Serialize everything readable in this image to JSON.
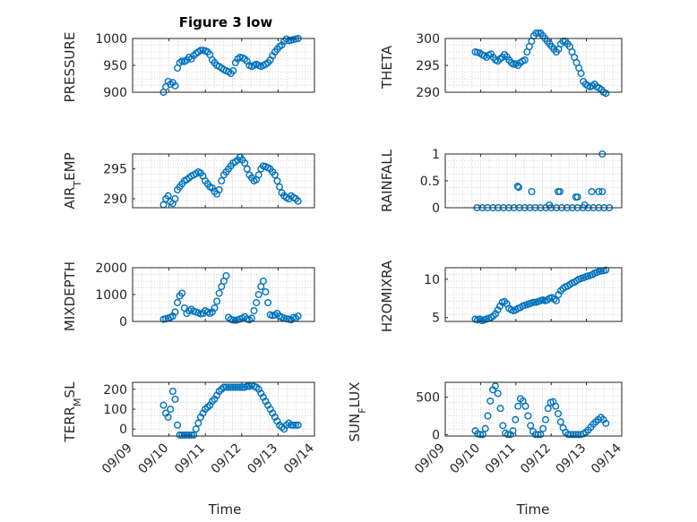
{
  "figure": {
    "title": "Figure 3 low",
    "xlabel": "Time"
  },
  "chart_data": [
    {
      "type": "scatter",
      "ylabel": "PRESSURE",
      "ylim": [
        900,
        1000
      ],
      "yticks": [
        900,
        950,
        1000
      ],
      "xlim": [
        0,
        5
      ],
      "grid": true,
      "y": [
        900,
        910,
        920,
        915,
        918,
        912,
        945,
        955,
        958,
        957,
        960,
        965,
        962,
        968,
        972,
        975,
        978,
        978,
        977,
        975,
        970,
        960,
        955,
        950,
        948,
        945,
        942,
        940,
        938,
        935,
        940,
        955,
        962,
        965,
        964,
        962,
        958,
        950,
        948,
        950,
        952,
        950,
        948,
        950,
        952,
        955,
        960,
        968,
        975,
        980,
        985,
        988,
        995,
        999,
        996,
        997,
        998,
        999,
        1000
      ]
    },
    {
      "type": "scatter",
      "ylabel": "THETA",
      "ylim": [
        290,
        300
      ],
      "yticks": [
        290,
        295,
        300
      ],
      "xlim": [
        0,
        5
      ],
      "grid": true,
      "y": [
        297.5,
        297.4,
        297.3,
        297.0,
        296.8,
        296.5,
        296.9,
        297.1,
        296.5,
        296.0,
        295.8,
        296.2,
        296.5,
        297.0,
        296.6,
        296.0,
        295.5,
        295.2,
        295.3,
        295.0,
        295.5,
        295.8,
        296.0,
        297.5,
        298.5,
        299.5,
        300.5,
        301,
        301,
        301,
        300.5,
        300,
        299.5,
        299.0,
        298.5,
        298.0,
        297.5,
        298.0,
        299.0,
        299.5,
        299.5,
        299.0,
        298.5,
        297.5,
        296.5,
        295.5,
        294.5,
        293.5,
        292.0,
        291.5,
        291.2,
        291.0,
        291.2,
        291.5,
        291.0,
        290.8,
        290.5,
        290.0,
        289.8
      ]
    },
    {
      "type": "scatter",
      "ylabel": "AIR_TEMP",
      "ylim": [
        288.5,
        297.5
      ],
      "yticks": [
        290,
        295
      ],
      "xlim": [
        0,
        5
      ],
      "grid": true,
      "y": [
        289.0,
        290.0,
        290.5,
        289.5,
        289.2,
        290.0,
        291.5,
        292.0,
        292.5,
        293.0,
        293.2,
        293.5,
        293.8,
        294.0,
        294.2,
        294.5,
        294.3,
        293.8,
        293.0,
        292.5,
        292.0,
        291.8,
        291.2,
        290.8,
        291.5,
        293.0,
        294.0,
        294.5,
        295.0,
        295.5,
        296.0,
        296.2,
        296.5,
        297.0,
        296.5,
        296.0,
        295.0,
        294.0,
        293.5,
        293.0,
        293.2,
        294.0,
        295.0,
        295.5,
        295.4,
        295.2,
        295.0,
        294.5,
        294.0,
        293.0,
        292.0,
        291.0,
        290.5,
        290.2,
        290.0,
        290.5,
        290.2,
        290.0,
        289.6
      ]
    },
    {
      "type": "scatter",
      "ylabel": "RAINFALL",
      "ylim": [
        0,
        1
      ],
      "yticks": [
        0,
        0.5,
        1
      ],
      "xlim": [
        0,
        5
      ],
      "grid": true,
      "points": [
        [
          0.9,
          0
        ],
        [
          1.05,
          0
        ],
        [
          1.2,
          0
        ],
        [
          1.35,
          0
        ],
        [
          1.5,
          0
        ],
        [
          1.65,
          0
        ],
        [
          1.8,
          0
        ],
        [
          1.95,
          0
        ],
        [
          2.1,
          0
        ],
        [
          2.25,
          0
        ],
        [
          2.4,
          0
        ],
        [
          2.55,
          0
        ],
        [
          2.7,
          0
        ],
        [
          2.85,
          0
        ],
        [
          3.0,
          0
        ],
        [
          3.15,
          0
        ],
        [
          3.3,
          0
        ],
        [
          3.45,
          0
        ],
        [
          3.6,
          0
        ],
        [
          3.75,
          0
        ],
        [
          3.9,
          0
        ],
        [
          4.05,
          0
        ],
        [
          4.2,
          0
        ],
        [
          4.35,
          0
        ],
        [
          4.5,
          0
        ],
        [
          4.65,
          0
        ],
        [
          2.05,
          0.4
        ],
        [
          2.08,
          0.38
        ],
        [
          2.45,
          0.3
        ],
        [
          2.95,
          0.05
        ],
        [
          3.2,
          0.3
        ],
        [
          3.25,
          0.3
        ],
        [
          3.7,
          0.2
        ],
        [
          3.75,
          0.2
        ],
        [
          3.95,
          0.05
        ],
        [
          4.15,
          0.3
        ],
        [
          4.35,
          0.3
        ],
        [
          4.45,
          0.3
        ],
        [
          4.45,
          1.0
        ]
      ]
    },
    {
      "type": "scatter",
      "ylabel": "MIXDEPTH",
      "ylim": [
        0,
        2000
      ],
      "yticks": [
        0,
        1000,
        2000
      ],
      "xlim": [
        0,
        5
      ],
      "grid": true,
      "y": [
        80,
        100,
        120,
        150,
        200,
        350,
        700,
        950,
        1050,
        500,
        300,
        400,
        450,
        380,
        350,
        320,
        280,
        300,
        400,
        350,
        300,
        350,
        500,
        750,
        1050,
        1300,
        1500,
        1700,
        150,
        80,
        50,
        40,
        60,
        90,
        120,
        180,
        90,
        60,
        120,
        400,
        700,
        1000,
        1300,
        1500,
        1100,
        700,
        250,
        220,
        240,
        300,
        200,
        150,
        120,
        100,
        80,
        60,
        150,
        120,
        200
      ]
    },
    {
      "type": "scatter",
      "ylabel": "H2OMIXRA",
      "ylim": [
        4.5,
        11.5
      ],
      "yticks": [
        5,
        10
      ],
      "xlim": [
        0,
        5
      ],
      "grid": true,
      "y": [
        4.8,
        4.7,
        4.8,
        4.6,
        4.7,
        4.8,
        4.9,
        5.0,
        5.2,
        5.5,
        6.0,
        6.5,
        7.0,
        7.1,
        6.8,
        6.2,
        6.0,
        5.9,
        6.0,
        6.2,
        6.3,
        6.5,
        6.6,
        6.7,
        6.8,
        6.9,
        7.0,
        7.0,
        7.1,
        7.2,
        7.3,
        7.2,
        7.3,
        7.5,
        7.6,
        7.4,
        7.2,
        8.0,
        8.5,
        8.8,
        9.0,
        9.1,
        9.3,
        9.5,
        9.6,
        9.8,
        10.0,
        10.1,
        10.2,
        10.3,
        10.4,
        10.5,
        10.6,
        10.8,
        10.9,
        11.0,
        11.1,
        11.1,
        11.2
      ]
    },
    {
      "type": "scatter",
      "ylabel": "TERR_MSL",
      "ylim": [
        -35,
        235
      ],
      "yticks": [
        0,
        100,
        200
      ],
      "xlim": [
        0,
        5
      ],
      "grid": true,
      "y": [
        120,
        80,
        60,
        100,
        190,
        150,
        20,
        -30,
        -30,
        -30,
        -30,
        -30,
        -30,
        -30,
        0,
        30,
        60,
        80,
        100,
        110,
        120,
        140,
        150,
        170,
        190,
        200,
        210,
        210,
        210,
        210,
        210,
        210,
        210,
        210,
        210,
        210,
        215,
        215,
        220,
        215,
        210,
        200,
        180,
        160,
        140,
        120,
        100,
        80,
        60,
        40,
        20,
        10,
        0,
        20,
        30,
        20,
        20,
        20,
        20
      ]
    },
    {
      "type": "scatter",
      "ylabel": "SUN_FLUX",
      "ylim": [
        -20,
        700
      ],
      "yticks": [
        0,
        500
      ],
      "xlim": [
        0,
        5
      ],
      "grid": true,
      "y": [
        50,
        10,
        0,
        0,
        80,
        250,
        450,
        600,
        650,
        550,
        350,
        120,
        20,
        0,
        0,
        50,
        200,
        380,
        480,
        450,
        380,
        250,
        120,
        40,
        0,
        0,
        0,
        80,
        200,
        350,
        430,
        440,
        380,
        280,
        170,
        90,
        30,
        0,
        0,
        0,
        0,
        0,
        0,
        10,
        30,
        60,
        100,
        140,
        170,
        200,
        230,
        200,
        150
      ]
    }
  ],
  "xticks": [
    "09/09",
    "09/10",
    "09/11",
    "09/12",
    "09/13",
    "09/14"
  ],
  "colors": {
    "marker": "#0072BD",
    "axis": "#262626",
    "grid": "#c8c8c8"
  }
}
